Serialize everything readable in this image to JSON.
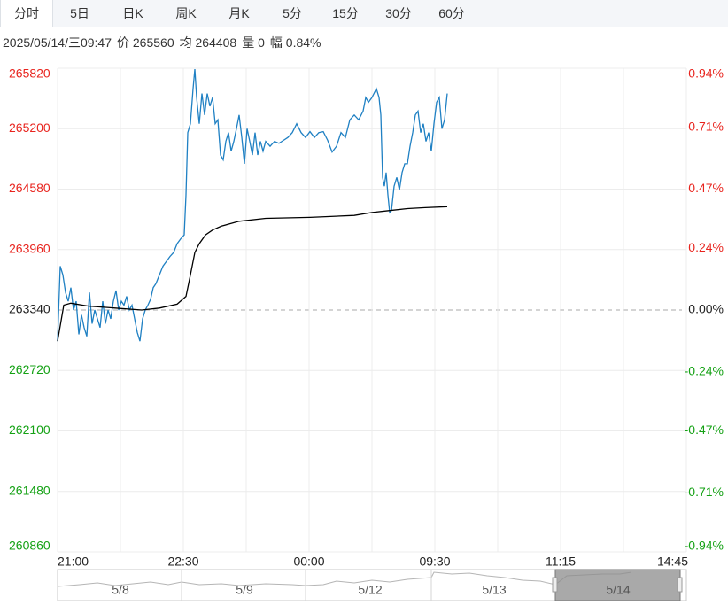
{
  "tabs": [
    "分时",
    "5日",
    "日K",
    "周K",
    "月K",
    "5分",
    "15分",
    "30分",
    "60分"
  ],
  "selected_tab": 0,
  "info": [
    "2025/05/14/三09:47",
    "价 265560",
    "均 264408",
    "量 0",
    "幅 0.84%"
  ],
  "chart_data": {
    "type": "line",
    "xlim": [
      0,
      710
    ],
    "xticks": [
      {
        "value": 0,
        "label": "21:00"
      },
      {
        "value": 142,
        "label": "22:30"
      },
      {
        "value": 284,
        "label": "00:00"
      },
      {
        "value": 426,
        "label": "09:30"
      },
      {
        "value": 568,
        "label": "11:15"
      },
      {
        "value": 710,
        "label": "14:45"
      }
    ],
    "xminor": [
      71,
      213,
      355,
      497,
      639
    ],
    "ylim": [
      260860,
      265820
    ],
    "yticks": [
      265820,
      265200,
      264580,
      263960,
      263340,
      262720,
      262100,
      261480,
      260860
    ],
    "y2lim": [
      -0.94,
      0.94
    ],
    "y2ticks": [
      {
        "value": 0.94,
        "label": "0.94%"
      },
      {
        "value": 0.71,
        "label": "0.71%"
      },
      {
        "value": 0.47,
        "label": "0.47%"
      },
      {
        "value": 0.24,
        "label": "0.24%"
      },
      {
        "value": 0,
        "label": "0.00%"
      },
      {
        "value": -0.24,
        "label": "-0.24%"
      },
      {
        "value": -0.47,
        "label": "-0.47%"
      },
      {
        "value": -0.71,
        "label": "-0.71%"
      },
      {
        "value": -0.94,
        "label": "-0.94%"
      }
    ],
    "base": 263340,
    "grid": true,
    "colors": {
      "up": "#e8241e",
      "down": "#14a114",
      "flat": "#222222"
    },
    "series": [
      {
        "name": "价",
        "color": "#1f80c3",
        "x": [
          0,
          3,
          6,
          9,
          12,
          15,
          18,
          21,
          24,
          27,
          30,
          33,
          36,
          39,
          42,
          45,
          48,
          51,
          54,
          57,
          60,
          63,
          66,
          69,
          72,
          75,
          78,
          81,
          84,
          87,
          90,
          93,
          96,
          99,
          102,
          105,
          108,
          111,
          115,
          119,
          123,
          127,
          131,
          135,
          139,
          143,
          145,
          147,
          150,
          153,
          155,
          157,
          160,
          163,
          166,
          169,
          172,
          175,
          178,
          181,
          184,
          187,
          190,
          193,
          196,
          199,
          202,
          205,
          208,
          211,
          214,
          217,
          220,
          223,
          226,
          229,
          232,
          235,
          240,
          245,
          250,
          255,
          260,
          265,
          270,
          275,
          280,
          285,
          290,
          295,
          300,
          305,
          310,
          315,
          320,
          325,
          330,
          335,
          340,
          345,
          348,
          351,
          355,
          360,
          363,
          365,
          367,
          369,
          371,
          373,
          375,
          377,
          380,
          383,
          386,
          389,
          392,
          395,
          398,
          401,
          404,
          407,
          410,
          413,
          416,
          419,
          422,
          425,
          428,
          431,
          434,
          437,
          440
        ],
        "values": [
          263020,
          263790,
          263700,
          263520,
          263430,
          263570,
          263340,
          263430,
          263090,
          263290,
          263160,
          263070,
          263520,
          263200,
          263340,
          263250,
          263160,
          263430,
          263200,
          263340,
          263250,
          263430,
          263540,
          263340,
          263430,
          263390,
          263480,
          263340,
          263390,
          263250,
          263110,
          263020,
          263250,
          263340,
          263390,
          263450,
          263570,
          263610,
          263700,
          263790,
          263840,
          263890,
          263930,
          264020,
          264070,
          264110,
          264520,
          265160,
          265250,
          265610,
          265810,
          265520,
          265250,
          265560,
          265340,
          265560,
          265430,
          265520,
          265250,
          265290,
          264930,
          264880,
          265070,
          265160,
          264970,
          265070,
          265200,
          265340,
          265110,
          264840,
          265200,
          265070,
          264930,
          265160,
          264930,
          265070,
          264970,
          265070,
          265020,
          265070,
          265050,
          265080,
          265110,
          265160,
          265250,
          265160,
          265110,
          265170,
          265110,
          265160,
          265170,
          265080,
          264960,
          265020,
          265160,
          265110,
          265290,
          265340,
          265290,
          265380,
          265520,
          265470,
          265520,
          265610,
          265520,
          265340,
          264700,
          264610,
          264750,
          264520,
          264340,
          264360,
          264610,
          264700,
          264570,
          264750,
          264840,
          264840,
          265020,
          265160,
          265340,
          265380,
          265160,
          265250,
          265070,
          265160,
          264970,
          265250,
          265470,
          265520,
          265200,
          265290,
          265560
        ]
      },
      {
        "name": "均",
        "color": "#000000",
        "x": [
          0,
          7,
          15,
          35,
          65,
          95,
          115,
          135,
          145,
          150,
          155,
          160,
          167,
          175,
          185,
          205,
          235,
          285,
          335,
          355,
          375,
          395,
          415,
          440
        ],
        "values": [
          263020,
          263390,
          263410,
          263380,
          263360,
          263340,
          263360,
          263400,
          263480,
          263700,
          263930,
          264020,
          264110,
          264160,
          264200,
          264250,
          264280,
          264290,
          264310,
          264340,
          264360,
          264380,
          264390,
          264400
        ]
      }
    ]
  },
  "navigator": {
    "dates": [
      "5/8",
      "5/9",
      "5/12",
      "5/13",
      "5/14"
    ]
  }
}
